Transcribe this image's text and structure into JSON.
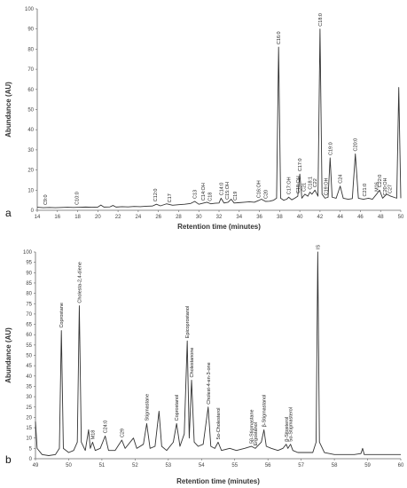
{
  "chart_data": [
    {
      "type": "line",
      "panel_label": "a",
      "xlabel": "Retention time (minutes)",
      "ylabel": "Abundance (AU)",
      "xlim": [
        14,
        50
      ],
      "ylim": [
        0,
        100
      ],
      "xticks": [
        "14",
        "16",
        "18",
        "20",
        "22",
        "24",
        "26",
        "28",
        "30",
        "32",
        "34",
        "36",
        "38",
        "40",
        "42",
        "44",
        "46",
        "48",
        "50"
      ],
      "yticks": [
        "0",
        "10",
        "20",
        "30",
        "40",
        "50",
        "60",
        "70",
        "80",
        "90",
        "100"
      ],
      "grid": false,
      "series": [
        {
          "points": [
            [
              14,
              1.5
            ],
            [
              14.6,
              1.3
            ],
            [
              15.2,
              1.4
            ],
            [
              15.8,
              1.3
            ],
            [
              16.4,
              1.4
            ],
            [
              17,
              1.5
            ],
            [
              17.6,
              1.4
            ],
            [
              18.2,
              1.5
            ],
            [
              18.8,
              1.6
            ],
            [
              19.4,
              1.5
            ],
            [
              20,
              1.6
            ],
            [
              20.3,
              2.6
            ],
            [
              20.6,
              1.6
            ],
            [
              21.2,
              1.7
            ],
            [
              21.5,
              2.4
            ],
            [
              21.8,
              1.6
            ],
            [
              22.4,
              1.8
            ],
            [
              23,
              1.7
            ],
            [
              23.6,
              1.9
            ],
            [
              24.2,
              1.8
            ],
            [
              24.8,
              2
            ],
            [
              25.4,
              2.1
            ],
            [
              25.8,
              3
            ],
            [
              26.2,
              2.2
            ],
            [
              26.8,
              3.2
            ],
            [
              27.4,
              2.5
            ],
            [
              28,
              2.8
            ],
            [
              28.6,
              3
            ],
            [
              29.2,
              3.4
            ],
            [
              29.6,
              4.4
            ],
            [
              30,
              3
            ],
            [
              30.4,
              3.5
            ],
            [
              30.8,
              4
            ],
            [
              31.2,
              3.2
            ],
            [
              31.6,
              3.5
            ],
            [
              32,
              3.6
            ],
            [
              32.2,
              6
            ],
            [
              32.5,
              3.6
            ],
            [
              32.9,
              4
            ],
            [
              33.2,
              5.5
            ],
            [
              33.5,
              3.6
            ],
            [
              34,
              3.8
            ],
            [
              34.5,
              4
            ],
            [
              35,
              4.2
            ],
            [
              35.5,
              4
            ],
            [
              35.9,
              4.8
            ],
            [
              36.2,
              5.5
            ],
            [
              36.6,
              4.4
            ],
            [
              37,
              4.5
            ],
            [
              37.4,
              5
            ],
            [
              37.7,
              6
            ],
            [
              37.9,
              81
            ],
            [
              38.1,
              6
            ],
            [
              38.4,
              5
            ],
            [
              38.7,
              5.5
            ],
            [
              38.9,
              6.5
            ],
            [
              39.2,
              5.2
            ],
            [
              39.5,
              6
            ],
            [
              39.8,
              7
            ],
            [
              40,
              18
            ],
            [
              40.2,
              6
            ],
            [
              40.5,
              8
            ],
            [
              40.8,
              7
            ],
            [
              41,
              9
            ],
            [
              41.2,
              8
            ],
            [
              41.5,
              10
            ],
            [
              41.8,
              7
            ],
            [
              42,
              90
            ],
            [
              42.2,
              8
            ],
            [
              42.5,
              6
            ],
            [
              42.8,
              6.5
            ],
            [
              43,
              26
            ],
            [
              43.2,
              6.5
            ],
            [
              43.6,
              6
            ],
            [
              44,
              12
            ],
            [
              44.3,
              6
            ],
            [
              44.8,
              5.5
            ],
            [
              45.2,
              5.8
            ],
            [
              45.5,
              28
            ],
            [
              45.8,
              6
            ],
            [
              46.3,
              5.5
            ],
            [
              46.8,
              6
            ],
            [
              47.2,
              5.5
            ],
            [
              47.6,
              8
            ],
            [
              47.9,
              10
            ],
            [
              48.2,
              6
            ],
            [
              48.6,
              8
            ],
            [
              49,
              7
            ],
            [
              49.3,
              6.5
            ],
            [
              49.6,
              6
            ],
            [
              49.8,
              61
            ],
            [
              50,
              6
            ]
          ]
        }
      ],
      "annotations": [
        {
          "text": "C9:0",
          "x": 14.8
        },
        {
          "text": "C10:0",
          "x": 17.9
        },
        {
          "text": "C12:0",
          "x": 25.7
        },
        {
          "text": "C17",
          "x": 27.1
        },
        {
          "text": "C13",
          "x": 29.6
        },
        {
          "text": "C14:OH",
          "x": 30.4
        },
        {
          "text": "C18",
          "x": 31.1
        },
        {
          "text": "C14:0",
          "x": 32.2
        },
        {
          "text": "C15:OH",
          "x": 32.8
        },
        {
          "text": "C19",
          "x": 33.6
        },
        {
          "text": "C16:OH",
          "x": 35.9
        },
        {
          "text": "C20",
          "x": 36.6
        },
        {
          "text": "C16:0",
          "x": 37.9
        },
        {
          "text": "C17:OH",
          "x": 38.9
        },
        {
          "text": "C18:OH",
          "x": 39.8
        },
        {
          "text": "C21",
          "x": 40.4
        },
        {
          "text": "C17:0",
          "x": 40,
          "peak": true
        },
        {
          "text": "C18:1",
          "x": 41
        },
        {
          "text": "C22",
          "x": 41.5
        },
        {
          "text": "C18:0",
          "x": 42,
          "peak": true
        },
        {
          "text": "C19:OH",
          "x": 42.6
        },
        {
          "text": "C19:0",
          "x": 43
        },
        {
          "text": "C24",
          "x": 44
        },
        {
          "text": "C20:0",
          "x": 45.5,
          "peak": true
        },
        {
          "text": "C21:0",
          "x": 46.4
        },
        {
          "text": "M16",
          "x": 47.6
        },
        {
          "text": "C22:0",
          "x": 47.9
        },
        {
          "text": "C20:OH",
          "x": 48.4
        },
        {
          "text": "C27",
          "x": 48.9
        }
      ]
    },
    {
      "type": "line",
      "panel_label": "b",
      "xlabel": "Retention time (minutes)",
      "ylabel": "Abundance (AU)",
      "xlim": [
        49,
        60
      ],
      "ylim": [
        0,
        100
      ],
      "xticks": [
        "49",
        "50",
        "51",
        "52",
        "53",
        "54",
        "55",
        "56",
        "57",
        "58",
        "59",
        "60"
      ],
      "yticks": [
        "0",
        "5",
        "10",
        "15",
        "20",
        "25",
        "30",
        "35",
        "40",
        "45",
        "50",
        "55",
        "60",
        "65",
        "70",
        "75",
        "80",
        "85",
        "90",
        "95",
        "100"
      ],
      "grid": false,
      "series": [
        {
          "points": [
            [
              49,
              18
            ],
            [
              49.05,
              5
            ],
            [
              49.2,
              2
            ],
            [
              49.4,
              1.5
            ],
            [
              49.6,
              2
            ],
            [
              49.72,
              5
            ],
            [
              49.78,
              62
            ],
            [
              49.84,
              5
            ],
            [
              50,
              3
            ],
            [
              50.15,
              4
            ],
            [
              50.26,
              8
            ],
            [
              50.32,
              74
            ],
            [
              50.38,
              8
            ],
            [
              50.5,
              4
            ],
            [
              50.6,
              14
            ],
            [
              50.65,
              5
            ],
            [
              50.72,
              8
            ],
            [
              50.8,
              4
            ],
            [
              50.95,
              5
            ],
            [
              51.1,
              11
            ],
            [
              51.2,
              4
            ],
            [
              51.4,
              4
            ],
            [
              51.6,
              9
            ],
            [
              51.7,
              5
            ],
            [
              51.95,
              10
            ],
            [
              52.05,
              5
            ],
            [
              52.25,
              7
            ],
            [
              52.35,
              17
            ],
            [
              52.45,
              5
            ],
            [
              52.6,
              6
            ],
            [
              52.72,
              23
            ],
            [
              52.8,
              6
            ],
            [
              52.95,
              4
            ],
            [
              53.15,
              8
            ],
            [
              53.25,
              17
            ],
            [
              53.35,
              6
            ],
            [
              53.48,
              12
            ],
            [
              53.57,
              57
            ],
            [
              53.63,
              10
            ],
            [
              53.7,
              38
            ],
            [
              53.78,
              8
            ],
            [
              53.9,
              6
            ],
            [
              54.05,
              7
            ],
            [
              54.2,
              25
            ],
            [
              54.28,
              6
            ],
            [
              54.4,
              5
            ],
            [
              54.5,
              8
            ],
            [
              54.6,
              4
            ],
            [
              54.85,
              5
            ],
            [
              55.05,
              4
            ],
            [
              55.3,
              5
            ],
            [
              55.5,
              6
            ],
            [
              55.62,
              5
            ],
            [
              55.8,
              8
            ],
            [
              55.88,
              14
            ],
            [
              55.95,
              6
            ],
            [
              56.1,
              5
            ],
            [
              56.3,
              4
            ],
            [
              56.45,
              5
            ],
            [
              56.55,
              7
            ],
            [
              56.6,
              5
            ],
            [
              56.68,
              7
            ],
            [
              56.75,
              4
            ],
            [
              56.9,
              3
            ],
            [
              57.1,
              3
            ],
            [
              57.35,
              3
            ],
            [
              57.45,
              8
            ],
            [
              57.5,
              100
            ],
            [
              57.55,
              8
            ],
            [
              57.7,
              3
            ],
            [
              58,
              2
            ],
            [
              58.3,
              2
            ],
            [
              58.6,
              2
            ],
            [
              58.8,
              2.5
            ],
            [
              58.85,
              5
            ],
            [
              58.9,
              2
            ],
            [
              59.2,
              2
            ],
            [
              59.5,
              2
            ],
            [
              59.8,
              2
            ],
            [
              60,
              2
            ]
          ]
        }
      ],
      "annotations": [
        {
          "text": "Coprostane",
          "x": 49.78,
          "peak": true
        },
        {
          "text": "Cholesta-2,4-diene",
          "x": 50.32,
          "peak": true
        },
        {
          "text": "M18",
          "x": 50.72
        },
        {
          "text": "C24:0",
          "x": 51.1
        },
        {
          "text": "C29",
          "x": 51.6
        },
        {
          "text": "Stigmastane",
          "x": 52.35,
          "peak": true
        },
        {
          "text": "Coprostanol",
          "x": 53.25,
          "peak": true
        },
        {
          "text": "Epicoprostanol",
          "x": 53.57,
          "peak": true
        },
        {
          "text": "Cholestanone",
          "x": 53.7,
          "peak": true
        },
        {
          "text": "Cholest-4-en-3-one",
          "x": 54.2,
          "peak": true
        },
        {
          "text": "5α-Cholesterol",
          "x": 54.5
        },
        {
          "text": "5β-Stigmastane",
          "x": 55.5
        },
        {
          "text": "Ergostanol",
          "x": 55.62
        },
        {
          "text": "β-Stigmastanol",
          "x": 55.88,
          "peak": true
        },
        {
          "text": "β-Sitosterol",
          "x": 56.55
        },
        {
          "text": "5α-Stigmasterol",
          "x": 56.68
        },
        {
          "text": "IS",
          "x": 57.5,
          "peak": true
        }
      ]
    }
  ]
}
